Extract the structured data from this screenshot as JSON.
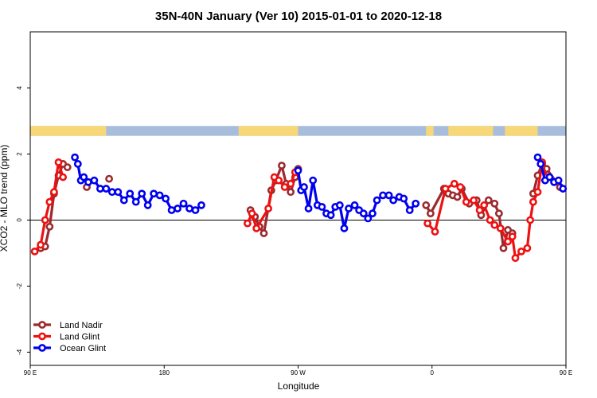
{
  "chart_data": {
    "type": "line",
    "title": "35N-40N January (Ver 10)   2015-01-01 to 2020-12-18",
    "xlabel": "Longitude",
    "ylabel": "XCO2 - MLO trend (ppm)",
    "xlim": [
      90,
      450
    ],
    "ylim": [
      -4.4,
      5.7
    ],
    "x_ticks": [
      {
        "value": 90,
        "label": "90 E"
      },
      {
        "value": 180,
        "label": "180"
      },
      {
        "value": 270,
        "label": "90 W"
      },
      {
        "value": 360,
        "label": "0"
      },
      {
        "value": 450,
        "label": "90 E"
      },
      {
        "value": 540,
        "label": "180"
      }
    ],
    "y_ticks": [
      {
        "value": -4,
        "label": "-4"
      },
      {
        "value": -2,
        "label": "-2"
      },
      {
        "value": 0,
        "label": "0"
      },
      {
        "value": 2,
        "label": "2"
      },
      {
        "value": 4,
        "label": "4"
      }
    ],
    "zero_line": true,
    "grid": false,
    "legend_position": "bottom-left",
    "land_ocean_strip": {
      "y_range": [
        2.55,
        2.85
      ],
      "ocean_color": "#a7bddb",
      "land_color": "#f8d778",
      "land_segments": [
        [
          90,
          141
        ],
        [
          230,
          270
        ],
        [
          356,
          361
        ],
        [
          371,
          401
        ],
        [
          409,
          431
        ],
        [
          490,
          490.5
        ],
        [
          510,
          514
        ]
      ]
    },
    "series": [
      {
        "name": "Land Nadir",
        "color": "#9b2a2e",
        "points": [
          [
            97,
            -0.85
          ],
          [
            100,
            -0.8
          ],
          [
            103,
            -0.2
          ],
          [
            106,
            0.8
          ],
          [
            109,
            1.35
          ],
          [
            112,
            1.7
          ],
          [
            115,
            1.6
          ],
          [
            128,
            1.0
          ],
          [
            143,
            1.25
          ],
          [
            238,
            0.3
          ],
          [
            241,
            0.1
          ],
          [
            244,
            -0.2
          ],
          [
            247,
            -0.4
          ],
          [
            252,
            0.9
          ],
          [
            255,
            1.2
          ],
          [
            259,
            1.65
          ],
          [
            262,
            1.1
          ],
          [
            265,
            0.85
          ],
          [
            268,
            1.3
          ],
          [
            270,
            1.55
          ],
          [
            356,
            0.45
          ],
          [
            359,
            0.2
          ],
          [
            368,
            0.95
          ],
          [
            371,
            0.8
          ],
          [
            374,
            0.75
          ],
          [
            377,
            0.7
          ],
          [
            380,
            0.95
          ],
          [
            385,
            0.5
          ],
          [
            390,
            0.6
          ],
          [
            393,
            0.15
          ],
          [
            398,
            0.6
          ],
          [
            402,
            0.5
          ],
          [
            405,
            0.2
          ],
          [
            408,
            -0.85
          ],
          [
            411,
            -0.3
          ],
          [
            414,
            -0.4
          ],
          [
            428,
            0.8
          ],
          [
            431,
            1.35
          ],
          [
            434,
            1.7
          ],
          [
            437,
            1.55
          ],
          [
            446,
            1.0
          ]
        ]
      },
      {
        "name": "Land Glint",
        "color": "#ee1111",
        "points": [
          [
            93,
            -0.95
          ],
          [
            97,
            -0.75
          ],
          [
            100,
            0.0
          ],
          [
            103,
            0.55
          ],
          [
            106,
            0.85
          ],
          [
            109,
            1.75
          ],
          [
            112,
            1.3
          ],
          [
            236,
            -0.1
          ],
          [
            239,
            0.2
          ],
          [
            242,
            -0.25
          ],
          [
            250,
            0.35
          ],
          [
            254,
            1.3
          ],
          [
            257,
            1.2
          ],
          [
            261,
            1.0
          ],
          [
            265,
            1.1
          ],
          [
            268,
            1.45
          ],
          [
            357,
            -0.1
          ],
          [
            362,
            -0.35
          ],
          [
            369,
            0.95
          ],
          [
            375,
            1.1
          ],
          [
            379,
            1.0
          ],
          [
            383,
            0.55
          ],
          [
            388,
            0.6
          ],
          [
            392,
            0.3
          ],
          [
            395,
            0.45
          ],
          [
            399,
            0.0
          ],
          [
            402,
            -0.15
          ],
          [
            406,
            -0.25
          ],
          [
            411,
            -0.65
          ],
          [
            414,
            -0.5
          ],
          [
            416,
            -1.15
          ],
          [
            420,
            -0.95
          ],
          [
            424,
            -0.85
          ],
          [
            426,
            0.0
          ],
          [
            428,
            0.55
          ],
          [
            431,
            0.85
          ],
          [
            434,
            1.75
          ],
          [
            437,
            1.3
          ]
        ]
      },
      {
        "name": "Ocean Glint",
        "color": "#0000ee",
        "points": [
          [
            120,
            1.9
          ],
          [
            122,
            1.7
          ],
          [
            124,
            1.2
          ],
          [
            126,
            1.3
          ],
          [
            129,
            1.15
          ],
          [
            133,
            1.2
          ],
          [
            137,
            0.95
          ],
          [
            141,
            0.95
          ],
          [
            145,
            0.85
          ],
          [
            149,
            0.85
          ],
          [
            153,
            0.6
          ],
          [
            157,
            0.8
          ],
          [
            161,
            0.55
          ],
          [
            165,
            0.8
          ],
          [
            169,
            0.45
          ],
          [
            173,
            0.8
          ],
          [
            177,
            0.75
          ],
          [
            181,
            0.65
          ],
          [
            185,
            0.3
          ],
          [
            189,
            0.35
          ],
          [
            193,
            0.5
          ],
          [
            197,
            0.35
          ],
          [
            201,
            0.3
          ],
          [
            205,
            0.45
          ],
          [
            270,
            1.5
          ],
          [
            272,
            0.9
          ],
          [
            274,
            1.0
          ],
          [
            277,
            0.35
          ],
          [
            280,
            1.2
          ],
          [
            283,
            0.45
          ],
          [
            286,
            0.4
          ],
          [
            289,
            0.2
          ],
          [
            292,
            0.15
          ],
          [
            295,
            0.4
          ],
          [
            298,
            0.45
          ],
          [
            301,
            -0.25
          ],
          [
            304,
            0.35
          ],
          [
            308,
            0.45
          ],
          [
            311,
            0.3
          ],
          [
            314,
            0.2
          ],
          [
            317,
            0.05
          ],
          [
            320,
            0.2
          ],
          [
            323,
            0.6
          ],
          [
            327,
            0.75
          ],
          [
            331,
            0.75
          ],
          [
            334,
            0.6
          ],
          [
            338,
            0.7
          ],
          [
            341,
            0.65
          ],
          [
            345,
            0.3
          ],
          [
            349,
            0.5
          ],
          [
            431,
            1.9
          ],
          [
            433,
            1.7
          ],
          [
            436,
            1.2
          ],
          [
            439,
            1.3
          ],
          [
            442,
            1.15
          ],
          [
            445,
            1.2
          ],
          [
            448,
            0.95
          ]
        ]
      }
    ]
  }
}
